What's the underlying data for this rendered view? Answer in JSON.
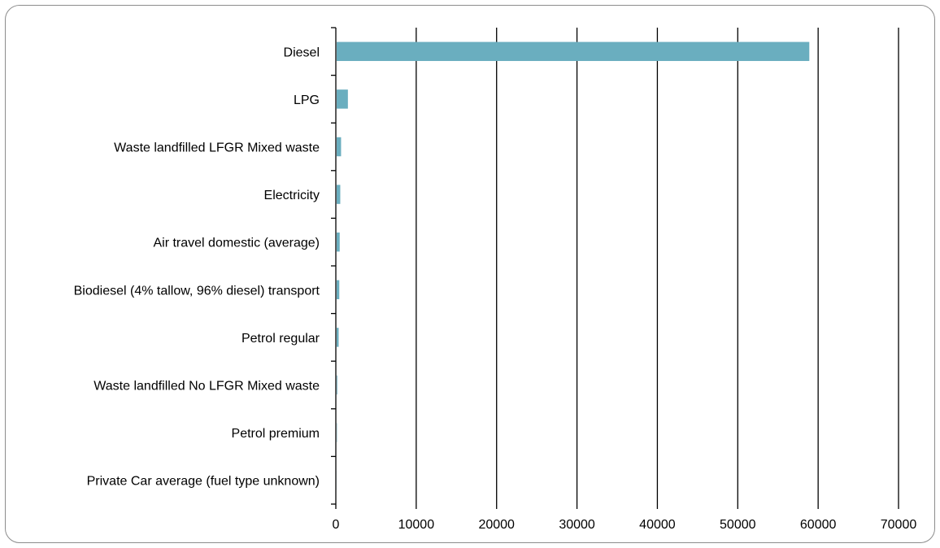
{
  "chart_data": {
    "type": "bar",
    "orientation": "horizontal",
    "title": "",
    "xlabel": "",
    "ylabel": "",
    "categories": [
      "Diesel",
      "LPG",
      "Waste landfilled LFGR Mixed waste",
      "Electricity",
      "Air travel domestic (average)",
      "Biodiesel (4% tallow, 96% diesel) transport",
      "Petrol regular",
      "Waste landfilled No LFGR Mixed waste",
      "Petrol premium",
      "Private Car average (fuel type unknown)"
    ],
    "values": [
      58800,
      1400,
      550,
      450,
      380,
      330,
      250,
      80,
      40,
      10
    ],
    "xlim": [
      0,
      70000
    ],
    "xticks": [
      "0",
      "10000",
      "20000",
      "30000",
      "40000",
      "50000",
      "60000",
      "70000"
    ],
    "grid": "vertical",
    "legend": "none",
    "bar_color": "#6aaebf"
  }
}
